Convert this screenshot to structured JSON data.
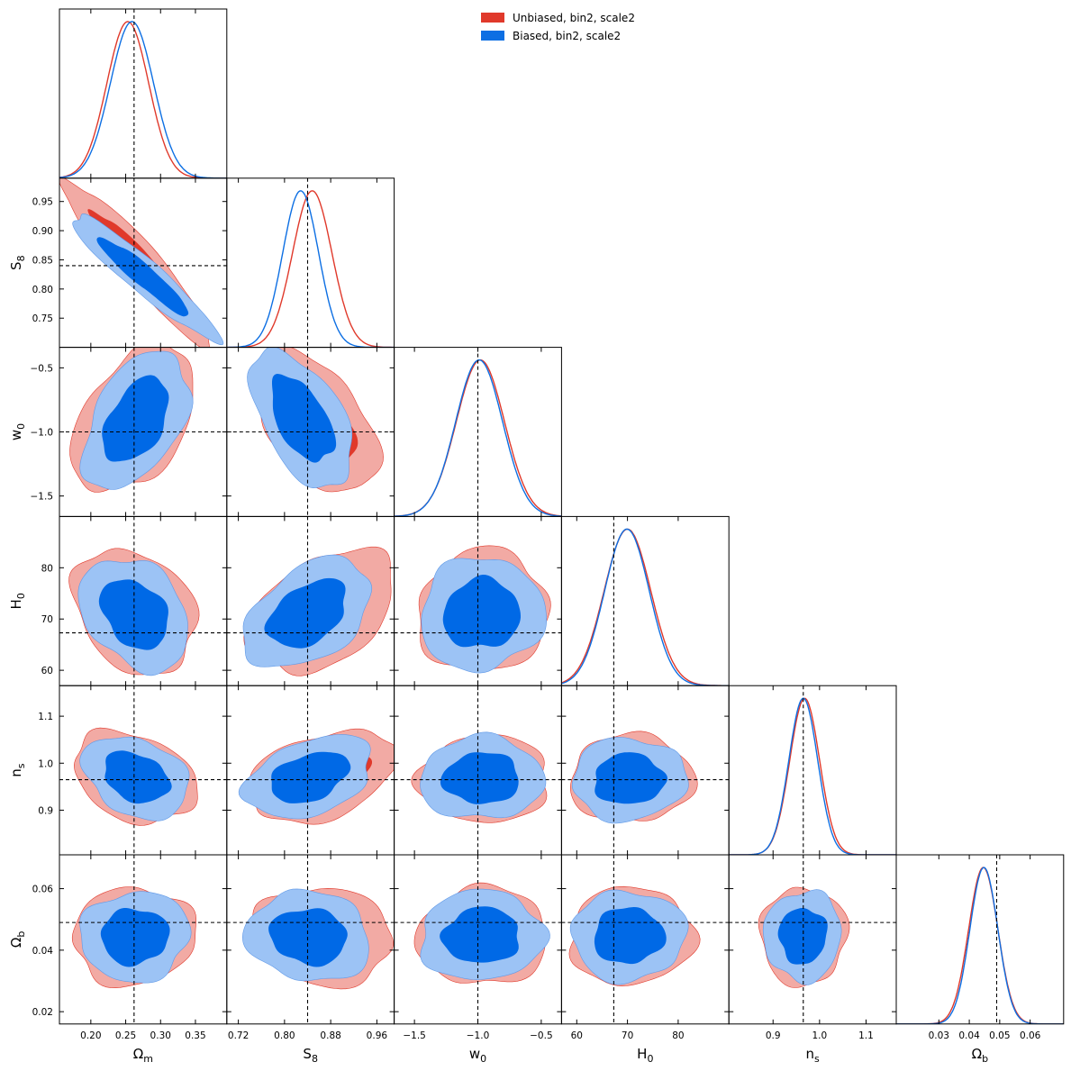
{
  "chart_data": {
    "type": "triangle-corner",
    "legend": [
      {
        "label": "Unbiased, bin2, scale2",
        "color": "#e0392b"
      },
      {
        "label": "Biased, bin2, scale2",
        "color": "#0d6fe3"
      }
    ],
    "colors": {
      "unbiased_line": "#e0392b",
      "unbiased_outer": "#f2aaa4",
      "unbiased_inner": "#e0392b",
      "biased_line": "#0d6fe3",
      "biased_outer": "#9cc3f5",
      "biased_inner": "#0069e6",
      "truth_line": "#000000"
    },
    "params": [
      {
        "key": "Om",
        "label": "Ω",
        "sub": "m",
        "range": [
          0.155,
          0.395
        ],
        "truth": 0.262,
        "ticks": [
          0.2,
          0.25,
          0.3,
          0.35
        ],
        "tick_labels": [
          "0.20",
          "0.25",
          "0.30",
          "0.35"
        ],
        "marginal": {
          "unbiased": {
            "mean": 0.253,
            "sd": 0.03
          },
          "biased": {
            "mean": 0.259,
            "sd": 0.031
          }
        }
      },
      {
        "key": "S8",
        "label": "S",
        "sub": "8",
        "range": [
          0.7,
          0.99
        ],
        "truth": 0.84,
        "ticks": [
          0.72,
          0.8,
          0.88,
          0.96
        ],
        "tick_labels": [
          "0.72",
          "0.80",
          "0.88",
          "0.96"
        ],
        "marginal": {
          "unbiased": {
            "mean": 0.848,
            "sd": 0.034
          },
          "biased": {
            "mean": 0.828,
            "sd": 0.031
          }
        }
      },
      {
        "key": "w0",
        "label": "w",
        "sub": "0",
        "range": [
          -1.66,
          -0.34
        ],
        "truth": -1.0,
        "ticks": [
          -1.5,
          -1.0,
          -0.5
        ],
        "tick_labels": [
          "−1.5",
          "−1.0",
          "−0.5"
        ],
        "marginal": {
          "unbiased": {
            "mean": -0.98,
            "sd": 0.19
          },
          "biased": {
            "mean": -0.99,
            "sd": 0.185
          }
        }
      },
      {
        "key": "H0",
        "label": "H",
        "sub": "0",
        "range": [
          57,
          90
        ],
        "truth": 67.3,
        "ticks": [
          60,
          70,
          80
        ],
        "tick_labels": [
          "60",
          "70",
          "80"
        ],
        "marginal": {
          "unbiased": {
            "mean": 70.0,
            "sd": 4.6
          },
          "biased": {
            "mean": 69.9,
            "sd": 4.4
          }
        }
      },
      {
        "key": "ns",
        "label": "n",
        "sub": "s",
        "range": [
          0.805,
          1.165
        ],
        "truth": 0.965,
        "ticks": [
          0.9,
          1.0,
          1.1
        ],
        "tick_labels": [
          "0.9",
          "1.0",
          "1.1"
        ],
        "marginal": {
          "unbiased": {
            "mean": 0.968,
            "sd": 0.032
          },
          "biased": {
            "mean": 0.965,
            "sd": 0.031
          }
        }
      },
      {
        "key": "Ob",
        "label": "Ω",
        "sub": "b",
        "range": [
          0.016,
          0.071
        ],
        "truth": 0.049,
        "ticks": [
          0.03,
          0.04,
          0.05,
          0.06
        ],
        "tick_labels": [
          "0.03",
          "0.04",
          "0.05",
          "0.06"
        ],
        "marginal": {
          "unbiased": {
            "mean": 0.0446,
            "sd": 0.0048
          },
          "biased": {
            "mean": 0.0448,
            "sd": 0.0046
          }
        }
      }
    ],
    "y_tick_overrides": {
      "S8": {
        "ticks": [
          0.75,
          0.8,
          0.85,
          0.9,
          0.95
        ],
        "tick_labels": [
          "0.75",
          "0.80",
          "0.85",
          "0.90",
          "0.95"
        ]
      },
      "Ob": {
        "ticks": [
          0.02,
          0.04,
          0.06
        ],
        "tick_labels": [
          "0.02",
          "0.04",
          "0.06"
        ]
      }
    },
    "contours_2d": [
      {
        "x": "Om",
        "y": "S8",
        "unbiased": {
          "cx": 0.268,
          "cy": 0.845,
          "sx": 0.044,
          "sy": 0.058,
          "rho": -0.94
        },
        "biased": {
          "cx": 0.276,
          "cy": 0.822,
          "sx": 0.043,
          "sy": 0.044,
          "rho": -0.94
        }
      },
      {
        "x": "Om",
        "y": "w0",
        "unbiased": {
          "cx": 0.262,
          "cy": -0.9,
          "sx": 0.036,
          "sy": 0.235,
          "rho": 0.42
        },
        "biased": {
          "cx": 0.265,
          "cy": -0.91,
          "sx": 0.031,
          "sy": 0.22,
          "rho": 0.45
        }
      },
      {
        "x": "Om",
        "y": "H0",
        "unbiased": {
          "cx": 0.263,
          "cy": 71.5,
          "sx": 0.036,
          "sy": 5.0,
          "rho": -0.25
        },
        "biased": {
          "cx": 0.263,
          "cy": 71.0,
          "sx": 0.032,
          "sy": 4.5,
          "rho": -0.3
        }
      },
      {
        "x": "Om",
        "y": "ns",
        "unbiased": {
          "cx": 0.263,
          "cy": 0.97,
          "sx": 0.036,
          "sy": 0.04,
          "rho": -0.28
        },
        "biased": {
          "cx": 0.265,
          "cy": 0.97,
          "sx": 0.031,
          "sy": 0.036,
          "rho": -0.3
        }
      },
      {
        "x": "Om",
        "y": "Ob",
        "unbiased": {
          "cx": 0.262,
          "cy": 0.0445,
          "sx": 0.036,
          "sy": 0.0065,
          "rho": 0.05
        },
        "biased": {
          "cx": 0.263,
          "cy": 0.0445,
          "sx": 0.032,
          "sy": 0.006,
          "rho": 0.05
        }
      },
      {
        "x": "S8",
        "y": "w0",
        "unbiased": {
          "cx": 0.855,
          "cy": -0.92,
          "sx": 0.043,
          "sy": 0.23,
          "rho": -0.5
        },
        "biased": {
          "cx": 0.83,
          "cy": -0.9,
          "sx": 0.036,
          "sy": 0.22,
          "rho": -0.52
        }
      },
      {
        "x": "S8",
        "y": "H0",
        "unbiased": {
          "cx": 0.865,
          "cy": 71.5,
          "sx": 0.052,
          "sy": 4.9,
          "rho": 0.4
        },
        "biased": {
          "cx": 0.84,
          "cy": 71.0,
          "sx": 0.045,
          "sy": 4.4,
          "rho": 0.42
        }
      },
      {
        "x": "S8",
        "y": "ns",
        "unbiased": {
          "cx": 0.866,
          "cy": 0.972,
          "sx": 0.052,
          "sy": 0.04,
          "rho": 0.35
        },
        "biased": {
          "cx": 0.843,
          "cy": 0.97,
          "sx": 0.045,
          "sy": 0.036,
          "rho": 0.37
        }
      },
      {
        "x": "S8",
        "y": "Ob",
        "unbiased": {
          "cx": 0.865,
          "cy": 0.0445,
          "sx": 0.05,
          "sy": 0.0065,
          "rho": -0.1
        },
        "biased": {
          "cx": 0.842,
          "cy": 0.0445,
          "sx": 0.044,
          "sy": 0.006,
          "rho": -0.1
        }
      },
      {
        "x": "w0",
        "y": "H0",
        "unbiased": {
          "cx": -0.96,
          "cy": 71.5,
          "sx": 0.21,
          "sy": 4.9,
          "rho": 0.05
        },
        "biased": {
          "cx": -0.97,
          "cy": 71.0,
          "sx": 0.2,
          "sy": 4.5,
          "rho": 0.05
        }
      },
      {
        "x": "w0",
        "y": "ns",
        "unbiased": {
          "cx": -0.95,
          "cy": 0.966,
          "sx": 0.21,
          "sy": 0.038,
          "rho": 0.02
        },
        "biased": {
          "cx": -0.97,
          "cy": 0.968,
          "sx": 0.2,
          "sy": 0.036,
          "rho": 0.02
        }
      },
      {
        "x": "w0",
        "y": "Ob",
        "unbiased": {
          "cx": -0.96,
          "cy": 0.0445,
          "sx": 0.21,
          "sy": 0.0065,
          "rho": 0.03
        },
        "biased": {
          "cx": -0.97,
          "cy": 0.0447,
          "sx": 0.2,
          "sy": 0.006,
          "rho": 0.03
        }
      },
      {
        "x": "H0",
        "y": "ns",
        "unbiased": {
          "cx": 70.8,
          "cy": 0.968,
          "sx": 5.0,
          "sy": 0.038,
          "rho": 0.02
        },
        "biased": {
          "cx": 70.3,
          "cy": 0.966,
          "sx": 4.6,
          "sy": 0.036,
          "rho": 0.02
        }
      },
      {
        "x": "H0",
        "y": "Ob",
        "unbiased": {
          "cx": 70.8,
          "cy": 0.0445,
          "sx": 5.0,
          "sy": 0.0065,
          "rho": 0.03
        },
        "biased": {
          "cx": 70.2,
          "cy": 0.0447,
          "sx": 4.6,
          "sy": 0.006,
          "rho": 0.03
        }
      },
      {
        "x": "ns",
        "y": "Ob",
        "unbiased": {
          "cx": 0.965,
          "cy": 0.0445,
          "sx": 0.038,
          "sy": 0.0065,
          "rho": 0.02
        },
        "biased": {
          "cx": 0.964,
          "cy": 0.0447,
          "sx": 0.034,
          "sy": 0.006,
          "rho": 0.02
        }
      }
    ]
  }
}
